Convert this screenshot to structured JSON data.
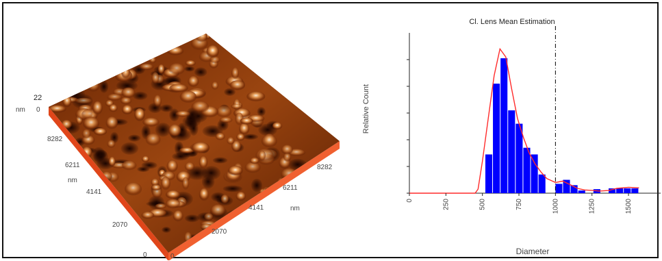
{
  "afm": {
    "z_max": "22",
    "z_unit": "nm",
    "z_min": "0",
    "y_ticks": [
      "8282",
      "6211",
      "4141",
      "2070",
      "0"
    ],
    "y_unit": "nm",
    "x_ticks": [
      "0",
      "2070",
      "4141",
      "6211",
      "8282"
    ],
    "x_unit": "nm"
  },
  "chart_data": {
    "type": "bar",
    "title": "Cl. Lens Mean Estimation",
    "xlabel": "Diameter",
    "ylabel": "Relative Count",
    "x_tick_labels": [
      "0",
      "250",
      "500",
      "750",
      "1000",
      "1250",
      "1500"
    ],
    "xlim": [
      0,
      1720
    ],
    "ylim": [
      0,
      6
    ],
    "bin_width": 52,
    "bars": [
      {
        "x": 520,
        "value": 1.45
      },
      {
        "x": 572,
        "value": 4.1
      },
      {
        "x": 624,
        "value": 5.05
      },
      {
        "x": 676,
        "value": 3.1
      },
      {
        "x": 728,
        "value": 2.6
      },
      {
        "x": 780,
        "value": 1.7
      },
      {
        "x": 832,
        "value": 1.45
      },
      {
        "x": 884,
        "value": 0.7
      },
      {
        "x": 1000,
        "value": 0.35
      },
      {
        "x": 1052,
        "value": 0.5
      },
      {
        "x": 1104,
        "value": 0.3
      },
      {
        "x": 1156,
        "value": 0.1
      },
      {
        "x": 1260,
        "value": 0.15
      },
      {
        "x": 1364,
        "value": 0.18
      },
      {
        "x": 1416,
        "value": 0.18
      },
      {
        "x": 1468,
        "value": 0.18
      },
      {
        "x": 1520,
        "value": 0.18
      }
    ],
    "fit_curve": {
      "x": [
        0,
        450,
        470,
        500,
        540,
        580,
        620,
        660,
        700,
        740,
        780,
        820,
        860,
        900,
        940,
        1000,
        1050,
        1100,
        1150,
        1200,
        1260,
        1300,
        1364,
        1420,
        1500,
        1572
      ],
      "y": [
        0,
        0,
        0.15,
        1.2,
        2.8,
        4.4,
        5.4,
        5.1,
        3.9,
        2.8,
        2.1,
        1.5,
        1.1,
        0.8,
        0.55,
        0.4,
        0.45,
        0.32,
        0.18,
        0.12,
        0.1,
        0.08,
        0.1,
        0.18,
        0.22,
        0.2
      ]
    },
    "mean_line_x": 1000,
    "colors": {
      "bars": "#0000ff",
      "fit": "#ff2a2a",
      "mean_line": "#000000"
    },
    "grid": false
  }
}
